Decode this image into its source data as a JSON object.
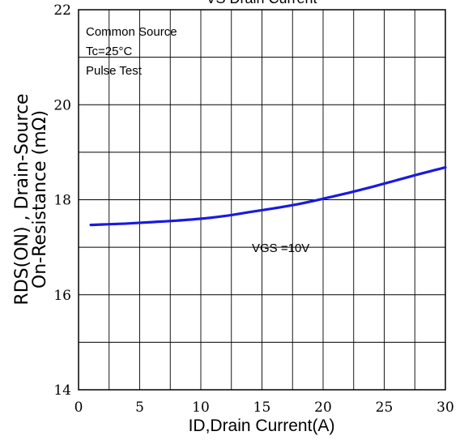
{
  "chart_data": {
    "type": "line",
    "title": "VS Drain Current",
    "xlabel": "ID,Drain Current(A)",
    "ylabel_lines": [
      "RDS(ON) , Drain-Source",
      "On-Resistance (mΩ)"
    ],
    "xlim": [
      0,
      30
    ],
    "ylim": [
      14,
      22
    ],
    "x_ticks": [
      0,
      5,
      10,
      15,
      20,
      25,
      30
    ],
    "y_ticks": [
      14,
      16,
      18,
      20,
      22
    ],
    "grid": true,
    "annotations": [
      "Common Source",
      "Tc=25°C",
      "Pulse Test"
    ],
    "series": [
      {
        "name": "VGS =10V",
        "color": "#1a1adf",
        "x": [
          1,
          2,
          4,
          6,
          8,
          10,
          12,
          14,
          16,
          18,
          20,
          22,
          24,
          26,
          28,
          30
        ],
        "y": [
          17.47,
          17.48,
          17.5,
          17.53,
          17.56,
          17.6,
          17.66,
          17.74,
          17.82,
          17.91,
          18.02,
          18.14,
          18.27,
          18.41,
          18.55,
          18.68
        ]
      }
    ]
  }
}
